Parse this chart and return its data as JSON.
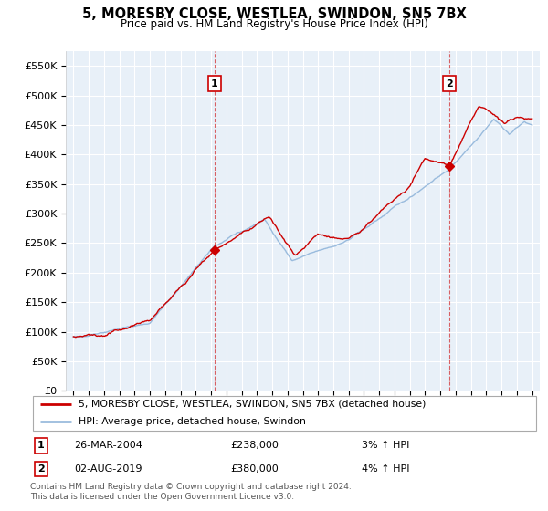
{
  "title": "5, MORESBY CLOSE, WESTLEA, SWINDON, SN5 7BX",
  "subtitle": "Price paid vs. HM Land Registry's House Price Index (HPI)",
  "ylim": [
    0,
    575000
  ],
  "yticks": [
    0,
    50000,
    100000,
    150000,
    200000,
    250000,
    300000,
    350000,
    400000,
    450000,
    500000,
    550000
  ],
  "ytick_labels": [
    "£0",
    "£50K",
    "£100K",
    "£150K",
    "£200K",
    "£250K",
    "£300K",
    "£350K",
    "£400K",
    "£450K",
    "£500K",
    "£550K"
  ],
  "bg_color": "#ffffff",
  "plot_bg_color": "#e8f0f8",
  "grid_color": "#ffffff",
  "line_color_property": "#cc0000",
  "line_color_hpi": "#99bbdd",
  "sale1_year": 2004.23,
  "sale1_price": 238000,
  "sale1_label": "1",
  "sale2_year": 2019.58,
  "sale2_price": 380000,
  "sale2_label": "2",
  "legend_property": "5, MORESBY CLOSE, WESTLEA, SWINDON, SN5 7BX (detached house)",
  "legend_hpi": "HPI: Average price, detached house, Swindon",
  "info1_label": "1",
  "info1_date": "26-MAR-2004",
  "info1_price": "£238,000",
  "info1_hpi": "3% ↑ HPI",
  "info2_label": "2",
  "info2_date": "02-AUG-2019",
  "info2_price": "£380,000",
  "info2_hpi": "4% ↑ HPI",
  "footer": "Contains HM Land Registry data © Crown copyright and database right 2024.\nThis data is licensed under the Open Government Licence v3.0.",
  "xstart": 1995,
  "xend": 2025
}
